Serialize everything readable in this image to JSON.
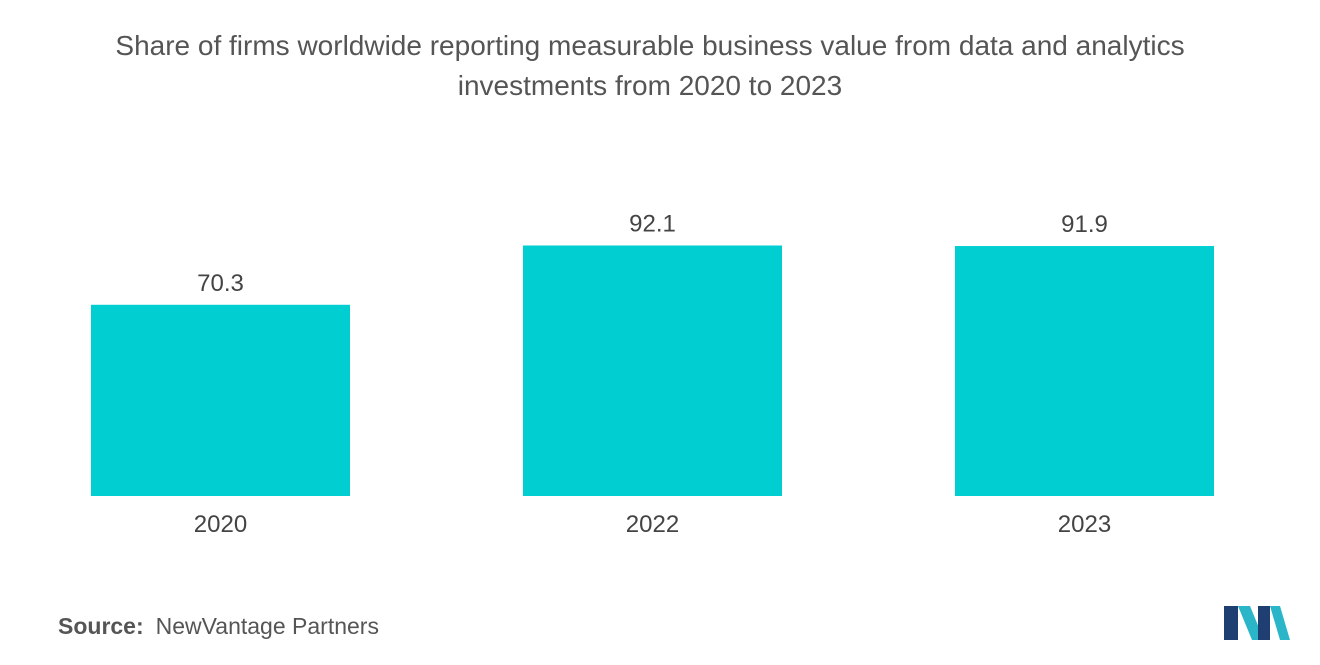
{
  "chart_data": {
    "type": "bar",
    "title_lines": [
      "Share of firms worldwide reporting measurable business value from data and analytics",
      "investments from 2020 to 2023"
    ],
    "categories": [
      "2020",
      "2022",
      "2023"
    ],
    "values": [
      70.3,
      92.1,
      91.9
    ],
    "value_labels": [
      "70.3",
      "92.1",
      "91.9"
    ],
    "xlabel": "",
    "ylabel": "",
    "ylim": [
      0,
      100
    ],
    "grid": false,
    "legend": "none",
    "bar_color": "#00CED1"
  },
  "source": {
    "label": "Source:",
    "text": "NewVantage Partners"
  },
  "logo": {
    "icon": "mordor-intelligence-logo-icon",
    "colors": [
      "#1F3F73",
      "#2BB5C8"
    ]
  }
}
